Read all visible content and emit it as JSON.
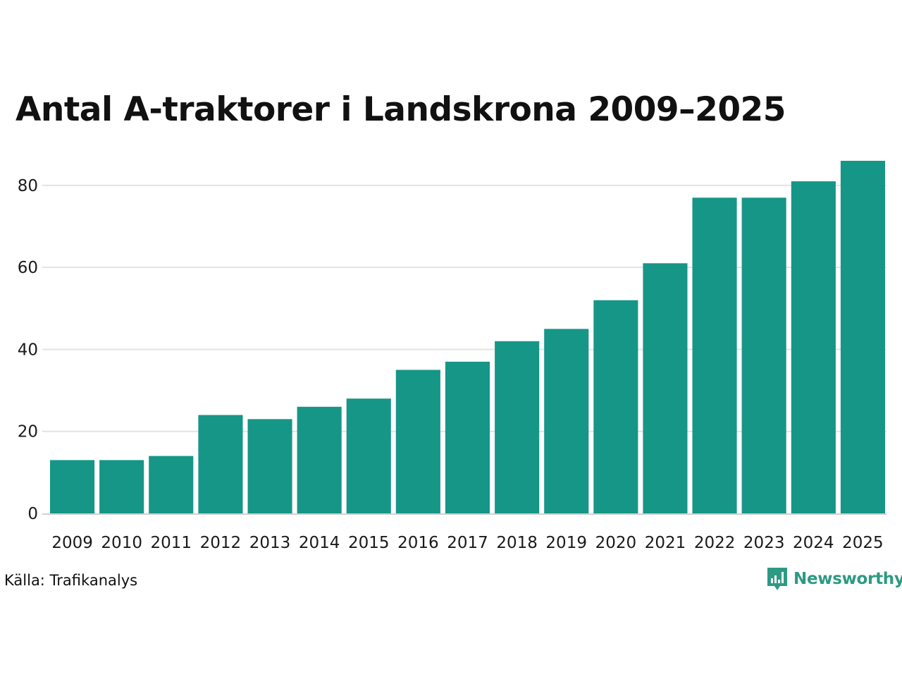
{
  "title": "Antal A-traktorer i Landskrona 2009–2025",
  "source": "Källa: Trafikanalys",
  "brand": {
    "name": "Newsworthy",
    "icon": "newsworthy-logo-icon",
    "color": "#2e9a83"
  },
  "colors": {
    "bar": "#169687",
    "grid": "#e3e3e3",
    "axis": "#d0d0d0"
  },
  "chart_data": {
    "type": "bar",
    "title": "Antal A-traktorer i Landskrona 2009–2025",
    "xlabel": "",
    "ylabel": "",
    "categories": [
      "2009",
      "2010",
      "2011",
      "2012",
      "2013",
      "2014",
      "2015",
      "2016",
      "2017",
      "2018",
      "2019",
      "2020",
      "2021",
      "2022",
      "2023",
      "2024",
      "2025"
    ],
    "values": [
      13,
      13,
      14,
      24,
      23,
      26,
      28,
      35,
      37,
      42,
      45,
      52,
      61,
      77,
      77,
      81,
      86
    ],
    "ylim": [
      0,
      86
    ],
    "yticks": [
      0,
      20,
      40,
      60,
      80
    ],
    "grid": true,
    "legend": "none"
  }
}
